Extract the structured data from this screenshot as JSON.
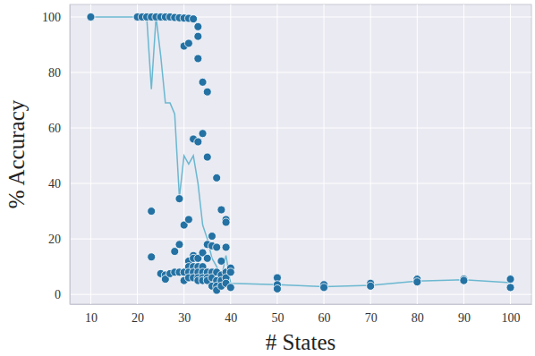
{
  "chart_data": {
    "type": "scatter",
    "x_label": "# States",
    "y_label": "% Accuracy",
    "xlim": [
      5.5,
      104.5
    ],
    "ylim": [
      -3.5,
      104.5
    ],
    "xticks": [
      10,
      20,
      30,
      40,
      50,
      60,
      70,
      80,
      90,
      100
    ],
    "yticks": [
      0,
      20,
      40,
      60,
      80,
      100
    ],
    "grid": true,
    "series": [
      {
        "type": "scatter",
        "color": "#2471a3",
        "marker": "circle",
        "x": [
          10,
          20,
          21,
          22,
          23,
          23,
          23,
          24,
          25,
          25,
          26,
          26,
          26,
          27,
          27,
          28,
          28,
          28,
          29,
          29,
          29,
          29,
          30,
          30,
          30,
          30,
          30,
          31,
          31,
          31,
          31,
          31,
          31,
          31,
          32,
          32,
          32,
          32,
          32,
          32,
          32,
          33,
          33,
          33,
          33,
          33,
          33,
          33,
          33,
          33,
          34,
          34,
          34,
          34,
          34,
          34,
          34,
          35,
          35,
          35,
          35,
          35,
          35,
          35,
          36,
          36,
          36,
          36,
          36,
          37,
          37,
          37,
          37,
          37,
          37,
          38,
          38,
          38,
          38,
          38,
          39,
          39,
          39,
          39,
          39,
          39,
          40,
          40,
          40,
          50,
          50,
          50,
          60,
          60,
          70,
          70,
          80,
          80,
          90,
          90,
          100,
          100
        ],
        "values": [
          100,
          100,
          100,
          100,
          100,
          30,
          13.5,
          100,
          100,
          7.5,
          100,
          7,
          5.5,
          100,
          7.5,
          99.8,
          15.5,
          8,
          99.7,
          34.5,
          18,
          8,
          99.6,
          89.5,
          25,
          8,
          5,
          99.5,
          90.5,
          27,
          12,
          10,
          8,
          6,
          99.3,
          56,
          14,
          13,
          10,
          8,
          6,
          96.5,
          93,
          85,
          55,
          13,
          10,
          8,
          6,
          5,
          76.5,
          58,
          15,
          10,
          8,
          6,
          5,
          73,
          49.5,
          18,
          13,
          8,
          6,
          5,
          21,
          17.5,
          8,
          6,
          3,
          42,
          17,
          8,
          5,
          3,
          1.5,
          30.5,
          12,
          7,
          5,
          3,
          27,
          26,
          17,
          8,
          6,
          4,
          9.5,
          8,
          2.5,
          6,
          3.5,
          2,
          3.5,
          2.5,
          4,
          3,
          5.5,
          4.5,
          5.5,
          5,
          5.5,
          2.5
        ]
      },
      {
        "type": "line",
        "color": "#6bb8d0",
        "line_style": "solid",
        "x": [
          10,
          20,
          21,
          22,
          23,
          24,
          25,
          26,
          27,
          28,
          29,
          30,
          31,
          32,
          33,
          34,
          35,
          36,
          37,
          38,
          39,
          40,
          50,
          60,
          70,
          80,
          90,
          100
        ],
        "values": [
          100,
          100,
          100,
          100,
          74,
          100,
          86,
          69,
          69,
          65,
          35,
          50,
          47,
          50,
          40,
          25,
          20,
          13,
          10,
          6,
          14,
          4,
          3.5,
          2.8,
          3.3,
          4.8,
          5.3,
          4.2
        ]
      }
    ]
  }
}
